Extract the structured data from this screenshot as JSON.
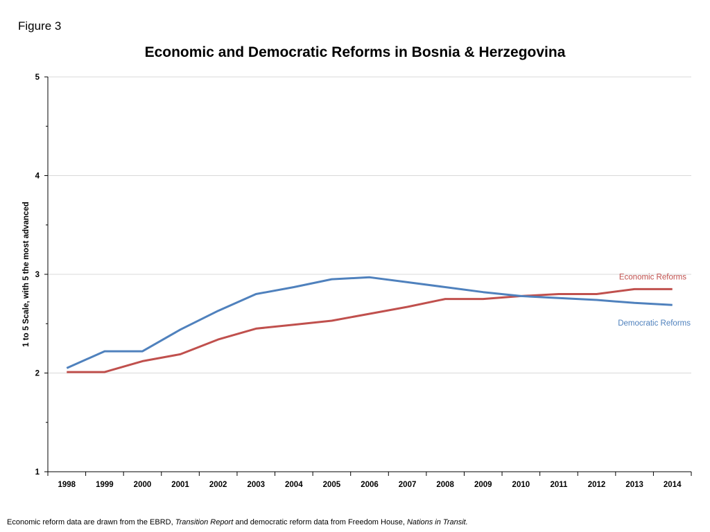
{
  "figure_label": "Figure 3",
  "colors": {
    "economic": "#c0504d",
    "democratic": "#4f81bd",
    "grid": "#d9d9d9",
    "axis": "#000000"
  },
  "footnote": {
    "part1": "Economic reform data are drawn from the EBRD, ",
    "source1": "Transition Report",
    "part2": " and democratic reform data from Freedom House, ",
    "source2": "Nations in Transit."
  },
  "chart_data": {
    "type": "line",
    "title": "Economic and Democratic Reforms in Bosnia & Herzegovina",
    "xlabel": "",
    "ylabel": "1 to 5 Scale, with 5 the most advanced",
    "ylim": [
      1,
      5
    ],
    "yticks": [
      1,
      2,
      3,
      4,
      5
    ],
    "grid": true,
    "categories": [
      "1998",
      "1999",
      "2000",
      "2001",
      "2002",
      "2003",
      "2004",
      "2005",
      "2006",
      "2007",
      "2008",
      "2009",
      "2010",
      "2011",
      "2012",
      "2013",
      "2014"
    ],
    "series": [
      {
        "name": "Economic Reforms",
        "color": "#c0504d",
        "values": [
          2.01,
          2.01,
          2.12,
          2.19,
          2.34,
          2.45,
          2.49,
          2.53,
          2.6,
          2.67,
          2.75,
          2.75,
          2.78,
          2.8,
          2.8,
          2.85,
          2.85
        ]
      },
      {
        "name": "Democratic Reforms",
        "color": "#4f81bd",
        "values": [
          2.05,
          2.22,
          2.22,
          2.44,
          2.63,
          2.8,
          2.87,
          2.95,
          2.97,
          2.92,
          2.87,
          2.82,
          2.78,
          2.76,
          2.74,
          2.71,
          2.69
        ]
      }
    ]
  }
}
